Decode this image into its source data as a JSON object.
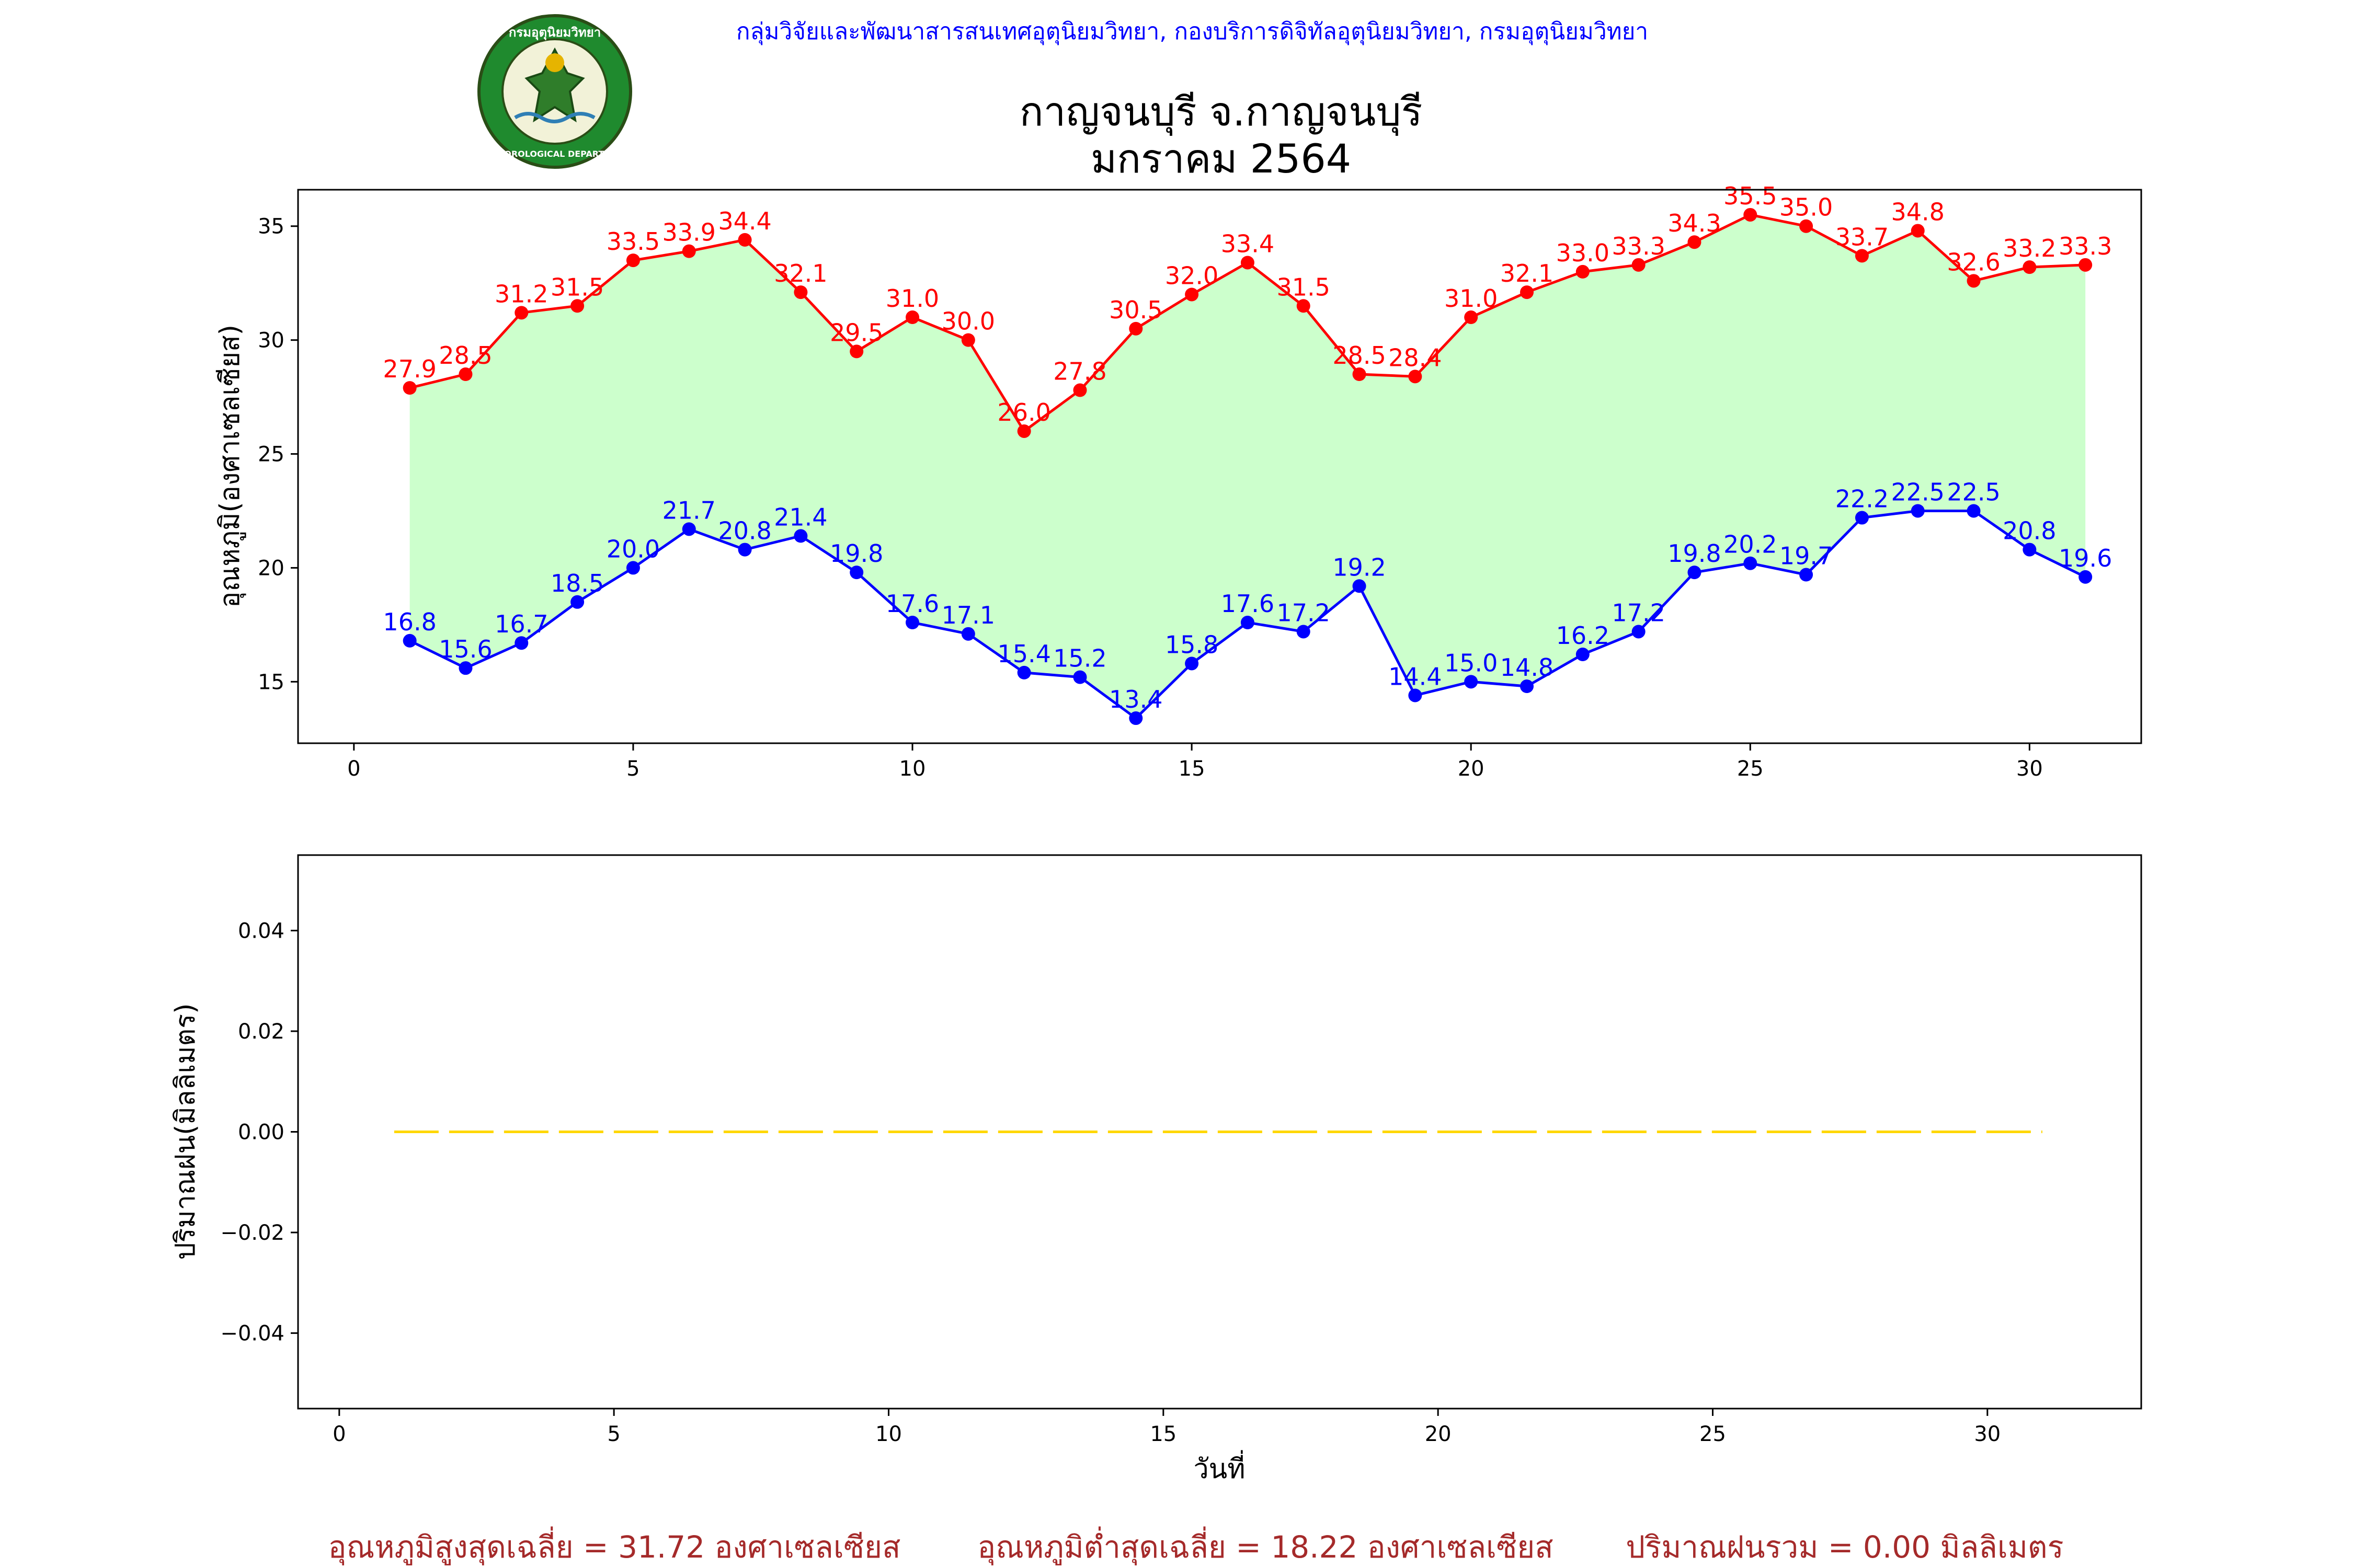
{
  "header": {
    "org_line": "กลุ่มวิจัยและพัฒนาสารสนเทศอุตุนิยมวิทยา, กองบริการดิจิทัลอุตุนิยมวิทยา, กรมอุตุนิยมวิทยา",
    "title_line1": "กาญจนบุรี จ.กาญจนบุรี",
    "title_line2": "มกราคม 2564",
    "org_color": "#0000ff"
  },
  "logo": {
    "icon": "meteorological-department-seal",
    "text_top": "กรมอุตุนิยมวิทยา",
    "text_bottom": "METEOROLOGICAL DEPARTMENT"
  },
  "chart_data": [
    {
      "type": "line",
      "ylabel": "อุณหภูมิ(องศาเซลเซียส)",
      "xlim": [
        -1,
        32
      ],
      "ylim": [
        12.3,
        36.6
      ],
      "xticks": [
        0,
        5,
        10,
        15,
        20,
        25,
        30
      ],
      "yticks": [
        15,
        20,
        25,
        30,
        35
      ],
      "grid": false,
      "fill_between": {
        "color": "#ccffcc"
      },
      "x": [
        1,
        2,
        3,
        4,
        5,
        6,
        7,
        8,
        9,
        10,
        11,
        12,
        13,
        14,
        15,
        16,
        17,
        18,
        19,
        20,
        21,
        22,
        23,
        24,
        25,
        26,
        27,
        28,
        29,
        30,
        31
      ],
      "series": [
        {
          "color": "#ff0000",
          "values": [
            27.9,
            28.5,
            31.2,
            31.5,
            33.5,
            33.9,
            34.4,
            32.1,
            29.5,
            31.0,
            30.0,
            26.0,
            27.8,
            30.5,
            32.0,
            33.4,
            31.5,
            28.5,
            28.4,
            31.0,
            32.1,
            33.0,
            33.3,
            34.3,
            35.5,
            35.0,
            33.7,
            34.8,
            32.6,
            33.2,
            33.3
          ]
        },
        {
          "color": "#0000ff",
          "values": [
            16.8,
            15.6,
            16.7,
            18.5,
            20.0,
            21.7,
            20.8,
            21.4,
            19.8,
            17.6,
            17.1,
            15.4,
            15.2,
            13.4,
            15.8,
            17.6,
            17.2,
            19.2,
            14.4,
            15.0,
            14.8,
            16.2,
            17.2,
            19.8,
            20.2,
            19.7,
            22.2,
            22.5,
            22.5,
            20.8,
            19.6
          ]
        }
      ]
    },
    {
      "type": "line",
      "xlabel": "วันที่",
      "ylabel": "ปริมาณฝน(มิลลิเมตร)",
      "xlim": [
        -0.75,
        32.8
      ],
      "ylim": [
        -0.055,
        0.055
      ],
      "xticks": [
        0,
        5,
        10,
        15,
        20,
        25,
        30
      ],
      "yticks": [
        -0.04,
        -0.02,
        0.0,
        0.02,
        0.04
      ],
      "ytick_labels": [
        "−0.04",
        "−0.02",
        "0.00",
        "0.02",
        "0.04"
      ],
      "grid": false,
      "x": [
        1,
        2,
        3,
        4,
        5,
        6,
        7,
        8,
        9,
        10,
        11,
        12,
        13,
        14,
        15,
        16,
        17,
        18,
        19,
        20,
        21,
        22,
        23,
        24,
        25,
        26,
        27,
        28,
        29,
        30,
        31
      ],
      "series": [
        {
          "color": "#ffd700",
          "line_style": "dashed",
          "values": [
            0,
            0,
            0,
            0,
            0,
            0,
            0,
            0,
            0,
            0,
            0,
            0,
            0,
            0,
            0,
            0,
            0,
            0,
            0,
            0,
            0,
            0,
            0,
            0,
            0,
            0,
            0,
            0,
            0,
            0,
            0
          ]
        }
      ]
    }
  ],
  "footer": {
    "avg_max": "อุณหภูมิสูงสุดเฉลี่ย = 31.72 องศาเซลเซียส",
    "avg_min": "อุณหภูมิต่ำสุดเฉลี่ย = 18.22 องศาเซลเซียส",
    "total_rain": "ปริมาณฝนรวม = 0.00 มิลลิเมตร",
    "color": "#a52a2a"
  }
}
